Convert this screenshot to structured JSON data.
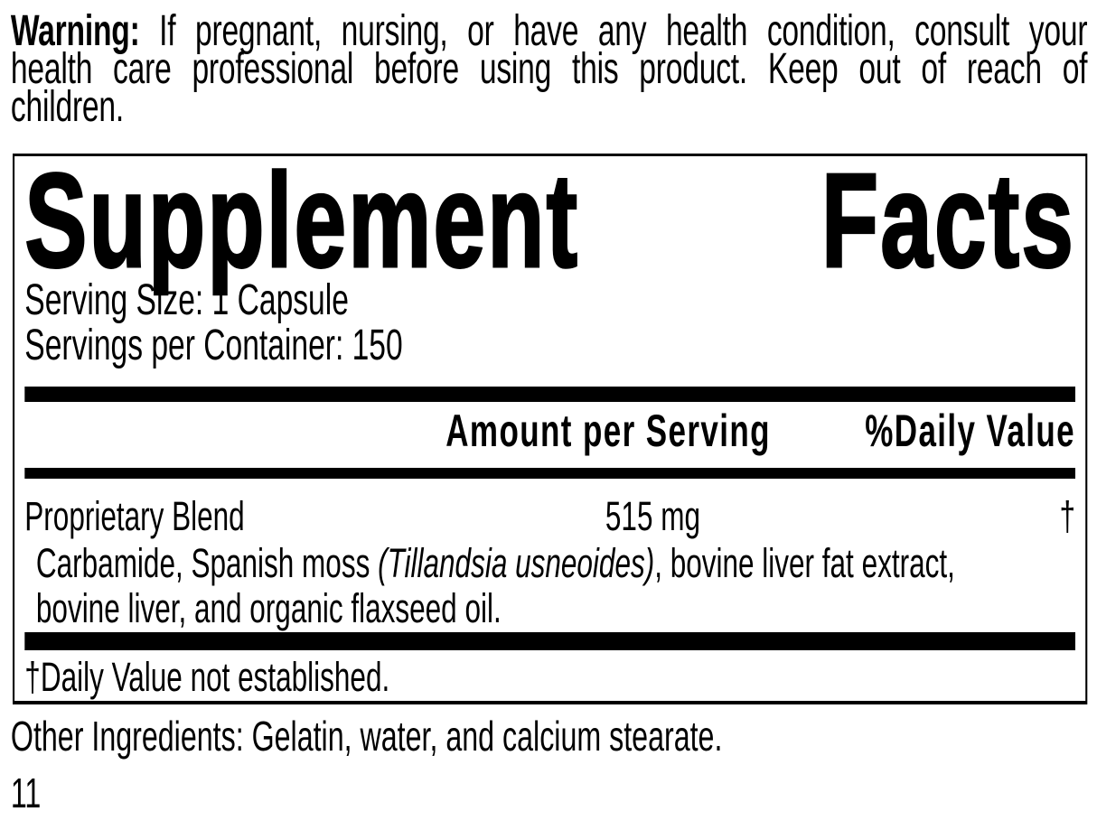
{
  "colors": {
    "ink": "#000000",
    "paper": "#ffffff"
  },
  "warning": {
    "label": "Warning:",
    "line1_rest": "If pregnant, nursing, or have any health condition, consult your",
    "line2": "health care professional before using this product. Keep out of reach of",
    "line3": "children."
  },
  "panel": {
    "title_word1": "Supplement",
    "title_word2": "Facts",
    "serving_size": "Serving Size: 1 Capsule",
    "servings_per_container": "Servings per Container: 150",
    "col_amount": "Amount per Serving",
    "col_dv": "%Daily Value",
    "rows": [
      {
        "name": "Proprietary Blend",
        "amount": "515 mg",
        "dv": "†",
        "desc_line1_pre": "Carbamide, Spanish moss ",
        "desc_italic": "(Tillandsia usneoides)",
        "desc_line1_post": ", bovine liver fat extract,",
        "desc_line2": "bovine liver, and organic flaxseed oil."
      }
    ],
    "footnote": "†Daily Value not established."
  },
  "other_ingredients": "Other Ingredients: Gelatin, water, and calcium stearate.",
  "page_number": "11"
}
